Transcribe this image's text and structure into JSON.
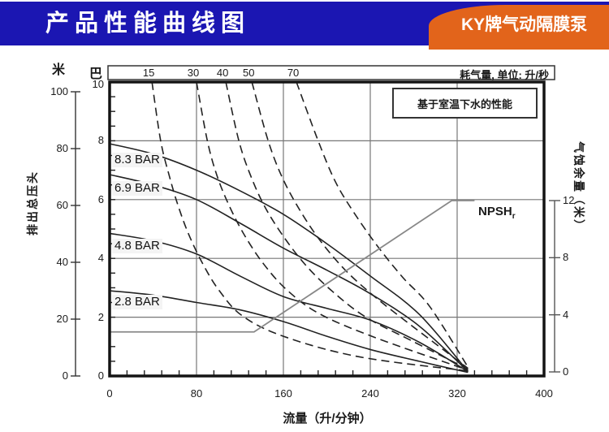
{
  "header": {
    "title": "产品性能曲线图",
    "badge": "KY牌气动隔膜泵",
    "bg_color": "#1b16b2",
    "badge_color": "#e2641b"
  },
  "chart_data": {
    "type": "line",
    "note": "基于室温下水的性能",
    "xlabel": "流量（升/分钟）",
    "x_range": [
      0,
      400
    ],
    "x_major_ticks": [
      0,
      80,
      160,
      240,
      320,
      400
    ],
    "x_minor_step": 16,
    "grid": true,
    "left_axis_bar": {
      "unit": "巴",
      "ticks": [
        10,
        8,
        6,
        4,
        2,
        0
      ],
      "range": [
        0,
        10
      ],
      "minor_step": 0.5,
      "label": "排出总压头"
    },
    "left_axis_m": {
      "unit": "米",
      "ticks": [
        100,
        80,
        60,
        40,
        20,
        0
      ],
      "range": [
        0,
        100
      ]
    },
    "right_axis": {
      "label": "气蚀余量（米）",
      "ticks": [
        12,
        8,
        4,
        0
      ],
      "range": [
        0,
        12
      ]
    },
    "top_axis": {
      "label": "耗气量, 单位: 升/秒",
      "ticks": [
        15,
        30,
        40,
        50,
        70
      ]
    },
    "discharge_curves": [
      {
        "name": "8.3 BAR",
        "style": "solid",
        "points": [
          [
            0,
            7.9
          ],
          [
            40,
            7.55
          ],
          [
            80,
            7.0
          ],
          [
            120,
            6.3
          ],
          [
            160,
            5.5
          ],
          [
            200,
            4.5
          ],
          [
            240,
            3.4
          ],
          [
            285,
            2.1
          ],
          [
            330,
            0.15
          ]
        ]
      },
      {
        "name": "6.9 BAR",
        "style": "solid",
        "points": [
          [
            0,
            6.85
          ],
          [
            40,
            6.5
          ],
          [
            80,
            6.0
          ],
          [
            120,
            5.2
          ],
          [
            160,
            4.35
          ],
          [
            200,
            3.6
          ],
          [
            240,
            2.8
          ],
          [
            285,
            1.7
          ],
          [
            330,
            0.15
          ]
        ]
      },
      {
        "name": "4.8 BAR",
        "style": "solid",
        "points": [
          [
            0,
            4.85
          ],
          [
            40,
            4.6
          ],
          [
            80,
            4.15
          ],
          [
            120,
            3.4
          ],
          [
            160,
            2.7
          ],
          [
            200,
            2.3
          ],
          [
            240,
            1.9
          ],
          [
            285,
            1.15
          ],
          [
            330,
            0.15
          ]
        ]
      },
      {
        "name": "2.8 BAR",
        "style": "solid",
        "points": [
          [
            0,
            2.9
          ],
          [
            40,
            2.75
          ],
          [
            80,
            2.5
          ],
          [
            120,
            2.25
          ],
          [
            160,
            1.85
          ],
          [
            200,
            1.35
          ],
          [
            240,
            0.9
          ],
          [
            285,
            0.5
          ],
          [
            330,
            0.12
          ]
        ]
      }
    ],
    "air_curves": [
      {
        "name": "15",
        "style": "dashed",
        "points": [
          [
            39,
            10
          ],
          [
            47,
            8
          ],
          [
            55,
            6.8
          ],
          [
            63,
            5.8
          ],
          [
            73,
            4.8
          ],
          [
            86,
            3.8
          ],
          [
            101,
            2.9
          ],
          [
            122,
            2.05
          ],
          [
            160,
            1.35
          ],
          [
            230,
            0.65
          ],
          [
            330,
            0.17
          ]
        ]
      },
      {
        "name": "30",
        "style": "dashed",
        "points": [
          [
            80,
            10
          ],
          [
            90,
            8
          ],
          [
            99,
            6.8
          ],
          [
            110,
            5.8
          ],
          [
            124,
            4.8
          ],
          [
            142,
            3.8
          ],
          [
            164,
            2.9
          ],
          [
            194,
            2.1
          ],
          [
            245,
            1.3
          ],
          [
            330,
            0.2
          ]
        ]
      },
      {
        "name": "40",
        "style": "dashed",
        "points": [
          [
            107,
            10
          ],
          [
            119,
            8
          ],
          [
            130,
            6.8
          ],
          [
            143,
            5.75
          ],
          [
            160,
            4.75
          ],
          [
            181,
            3.75
          ],
          [
            206,
            2.85
          ],
          [
            236,
            2.0
          ],
          [
            278,
            1.2
          ],
          [
            330,
            0.23
          ]
        ]
      },
      {
        "name": "50",
        "style": "dashed",
        "points": [
          [
            131,
            10
          ],
          [
            146,
            8
          ],
          [
            159,
            6.75
          ],
          [
            175,
            5.65
          ],
          [
            194,
            4.6
          ],
          [
            217,
            3.6
          ],
          [
            244,
            2.7
          ],
          [
            275,
            1.8
          ],
          [
            330,
            0.26
          ]
        ]
      },
      {
        "name": "70",
        "style": "dashed",
        "points": [
          [
            172,
            10
          ],
          [
            192,
            8
          ],
          [
            208,
            6.6
          ],
          [
            226,
            5.5
          ],
          [
            247,
            4.4
          ],
          [
            270,
            3.35
          ],
          [
            295,
            2.35
          ],
          [
            330,
            0.3
          ]
        ]
      }
    ],
    "npsh_curve": {
      "name": "NPSH",
      "sub": "r",
      "unit": "m",
      "points_flow_m": [
        [
          0,
          2.8
        ],
        [
          133,
          2.8
        ],
        [
          315,
          12
        ],
        [
          336,
          12
        ]
      ]
    }
  }
}
